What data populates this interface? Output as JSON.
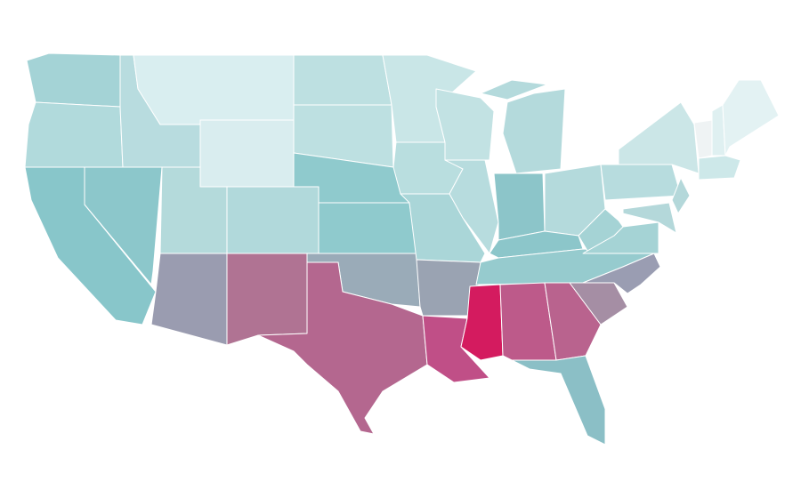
{
  "map": {
    "fills": [
      "#a4d3d6",
      "#b1dadc",
      "#88c6ca",
      "#8cc7cb",
      "#b8dcdf",
      "#d9eef0",
      "#d9edef",
      "#b4dadb",
      "#9a9cb0",
      "#b1d9db",
      "#b07393",
      "#bde0e1",
      "#bde0e1",
      "#8fcacd",
      "#8fcacd",
      "#9aabb8",
      "#b4678f",
      "#c9e6e7",
      "#b9dedf",
      "#aad6d8",
      "#9aa3b2",
      "#c04f87",
      "#c2e2e3",
      "#b7dcde",
      "#b4dadc",
      "#8cc5c9",
      "#b4dadc",
      "#8cc6ca",
      "#96cbce",
      "#d41b5f",
      "#bd5a8a",
      "#b9638e",
      "#8bbfc6",
      "#a58ea4",
      "#9a9db2",
      "#a5d3d5",
      "#a5d3d5",
      "#b7dcde",
      "#cbe6e7",
      "#b4d8da",
      "#b4d8da",
      "#eff3f4",
      "#dff0f1",
      "#e3f2f3",
      "#cde8e9"
    ]
  }
}
